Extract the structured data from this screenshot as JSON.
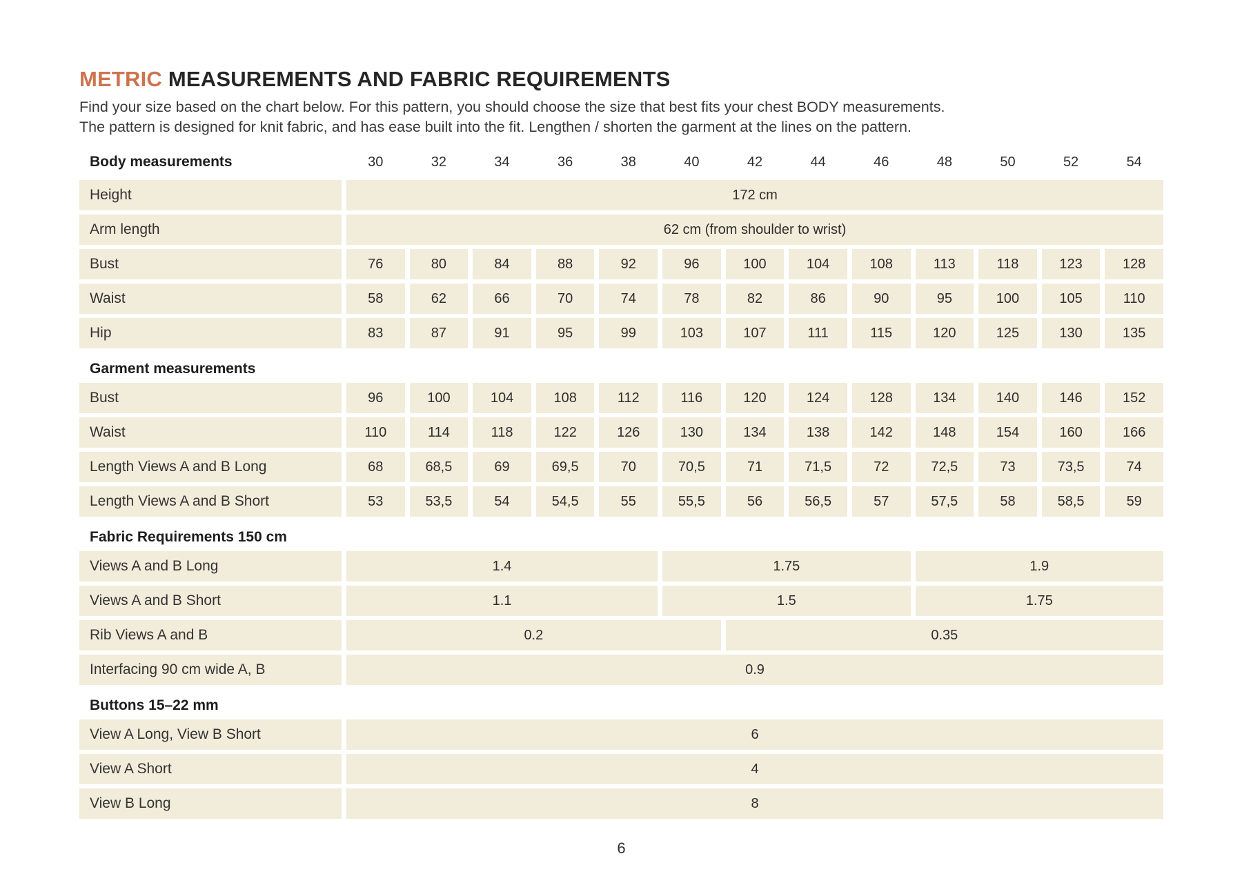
{
  "header": {
    "title_accent": "METRIC",
    "title_main": " MEASUREMENTS AND FABRIC REQUIREMENTS",
    "intro_line1": "Find your size based on the chart below. For this pattern, you should choose the size that best fits your chest BODY measurements.",
    "intro_line2": "The pattern is designed for knit fabric, and has ease built into the fit. Lengthen / shorten the garment at the lines on the pattern."
  },
  "colors": {
    "accent": "#ce734f",
    "cell_bg": "#f2ecda",
    "text_dark": "#1d1d1d"
  },
  "table": {
    "header": {
      "label": "Body measurements",
      "sizes": [
        "30",
        "32",
        "34",
        "36",
        "38",
        "40",
        "42",
        "44",
        "46",
        "48",
        "50",
        "52",
        "54"
      ]
    },
    "rows": [
      {
        "type": "full",
        "label": "Height",
        "value": "172 cm"
      },
      {
        "type": "full",
        "label": "Arm length",
        "value": "62 cm (from shoulder to wrist)"
      },
      {
        "type": "cells",
        "label": "Bust",
        "values": [
          "76",
          "80",
          "84",
          "88",
          "92",
          "96",
          "100",
          "104",
          "108",
          "113",
          "118",
          "123",
          "128"
        ]
      },
      {
        "type": "cells",
        "label": "Waist",
        "values": [
          "58",
          "62",
          "66",
          "70",
          "74",
          "78",
          "82",
          "86",
          "90",
          "95",
          "100",
          "105",
          "110"
        ]
      },
      {
        "type": "cells",
        "label": "Hip",
        "values": [
          "83",
          "87",
          "91",
          "95",
          "99",
          "103",
          "107",
          "111",
          "115",
          "120",
          "125",
          "130",
          "135"
        ]
      },
      {
        "type": "section",
        "label": "Garment measurements"
      },
      {
        "type": "cells",
        "label": "Bust",
        "values": [
          "96",
          "100",
          "104",
          "108",
          "112",
          "116",
          "120",
          "124",
          "128",
          "134",
          "140",
          "146",
          "152"
        ]
      },
      {
        "type": "cells",
        "label": "Waist",
        "values": [
          "110",
          "114",
          "118",
          "122",
          "126",
          "130",
          "134",
          "138",
          "142",
          "148",
          "154",
          "160",
          "166"
        ]
      },
      {
        "type": "cells",
        "label": "Length Views A and B Long",
        "values": [
          "68",
          "68,5",
          "69",
          "69,5",
          "70",
          "70,5",
          "71",
          "71,5",
          "72",
          "72,5",
          "73",
          "73,5",
          "74"
        ]
      },
      {
        "type": "cells",
        "label": "Length Views A and B Short",
        "values": [
          "53",
          "53,5",
          "54",
          "54,5",
          "55",
          "55,5",
          "56",
          "56,5",
          "57",
          "57,5",
          "58",
          "58,5",
          "59"
        ]
      },
      {
        "type": "section",
        "label": "Fabric Requirements 150 cm"
      },
      {
        "type": "spans",
        "label": "Views A and B Long",
        "spans": [
          {
            "value": "1.4",
            "cols": 5
          },
          {
            "value": "1.75",
            "cols": 4
          },
          {
            "value": "1.9",
            "cols": 4
          }
        ]
      },
      {
        "type": "spans",
        "label": "Views A and B Short",
        "spans": [
          {
            "value": "1.1",
            "cols": 5
          },
          {
            "value": "1.5",
            "cols": 4
          },
          {
            "value": "1.75",
            "cols": 4
          }
        ]
      },
      {
        "type": "spans",
        "label": "Rib Views A and B",
        "spans": [
          {
            "value": "0.2",
            "cols": 6
          },
          {
            "value": "0.35",
            "cols": 7
          }
        ]
      },
      {
        "type": "full",
        "label": "Interfacing 90 cm wide A, B",
        "value": "0.9"
      },
      {
        "type": "section",
        "label": "Buttons 15–22 mm"
      },
      {
        "type": "full",
        "label": "View A Long, View B Short",
        "value": "6"
      },
      {
        "type": "full",
        "label": "View A Short",
        "value": "4"
      },
      {
        "type": "full",
        "label": "View B Long",
        "value": "8"
      }
    ]
  },
  "footer": {
    "page_number": "6"
  }
}
